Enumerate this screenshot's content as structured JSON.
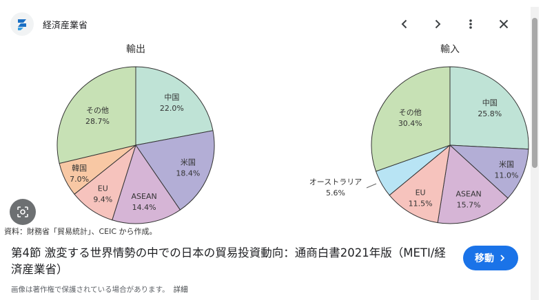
{
  "header": {
    "site_name": "経済産業省",
    "prev_icon": "chevron-left-icon",
    "next_icon": "chevron-right-icon",
    "more_icon": "more-vert-icon",
    "close_icon": "close-icon"
  },
  "chart_data": [
    {
      "type": "pie",
      "title": "輸出",
      "categories": [
        "中国",
        "米国",
        "ASEAN",
        "EU",
        "韓国",
        "その他"
      ],
      "values": [
        22.0,
        18.4,
        14.4,
        9.4,
        7.0,
        28.7
      ],
      "labels": [
        "22.0%",
        "18.4%",
        "14.4%",
        "9.4%",
        "7.0%",
        "28.7%"
      ],
      "colors": [
        "#bfe3d6",
        "#b3aed6",
        "#d6b5d6",
        "#f6c3bd",
        "#f8c8a4",
        "#c7e1b5"
      ]
    },
    {
      "type": "pie",
      "title": "輸入",
      "categories": [
        "中国",
        "米国",
        "ASEAN",
        "EU",
        "オーストラリア",
        "その他"
      ],
      "values": [
        25.8,
        11.0,
        15.7,
        11.5,
        5.6,
        30.4
      ],
      "labels": [
        "25.8%",
        "11.0%",
        "15.7%",
        "11.5%",
        "5.6%",
        "30.4%"
      ],
      "colors": [
        "#bfe3d6",
        "#b3aed6",
        "#d6b5d6",
        "#f6c3bd",
        "#b8e4f4",
        "#c7e1b5"
      ]
    }
  ],
  "source_note": "資料：財務省「貿易統計」、CEIC から作成。",
  "result": {
    "title": "第4節 激変する世界情勢の中での日本の貿易投資動向：通商白書2021年版（METI/経済産業省）",
    "button_label": "移動",
    "copyright_text": "画像は著作権で保護されている場合があります。",
    "detail_link": "詳細"
  }
}
